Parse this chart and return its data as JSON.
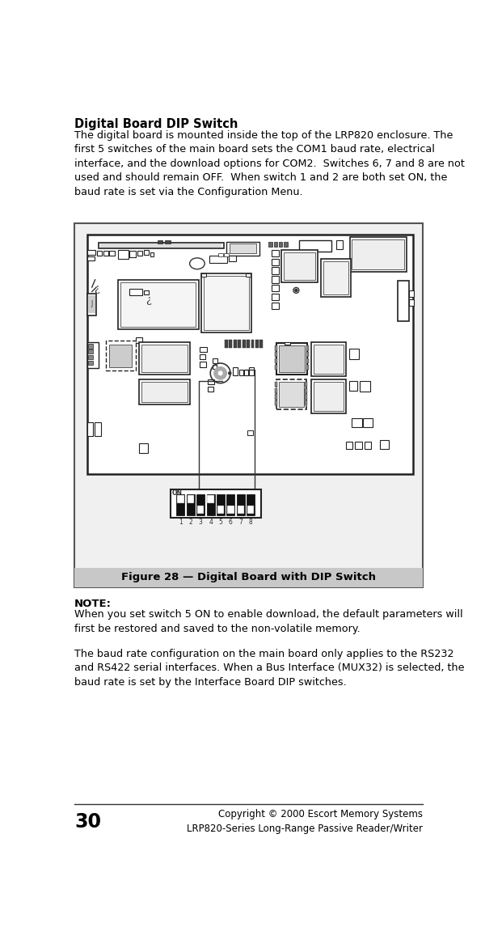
{
  "title": "Digital Board DIP Switch",
  "body_text1": "The digital board is mounted inside the top of the LRP820 enclosure. The\nfirst 5 switches of the main board sets the COM1 baud rate, electrical\ninterface, and the download options for COM2.  Switches 6, 7 and 8 are not\nused and should remain OFF.  When switch 1 and 2 are both set ON, the\nbaud rate is set via the Configuration Menu.",
  "note_label": "NOTE:",
  "note_text": "When you set switch 5 ON to enable download, the default parameters will\nfirst be restored and saved to the non-volatile memory.",
  "body_text2": "The baud rate configuration on the main board only applies to the RS232\nand RS422 serial interfaces. When a Bus Interface (MUX32) is selected, the\nbaud rate is set by the Interface Board DIP switches.",
  "figure_caption": "Figure 28 — Digital Board with DIP Switch",
  "page_number": "30",
  "copyright": "Copyright © 2000 Escort Memory Systems",
  "product": "LRP820-Series Long-Range Passive Reader/Writer",
  "bg_color": "#ffffff",
  "text_color": "#000000"
}
